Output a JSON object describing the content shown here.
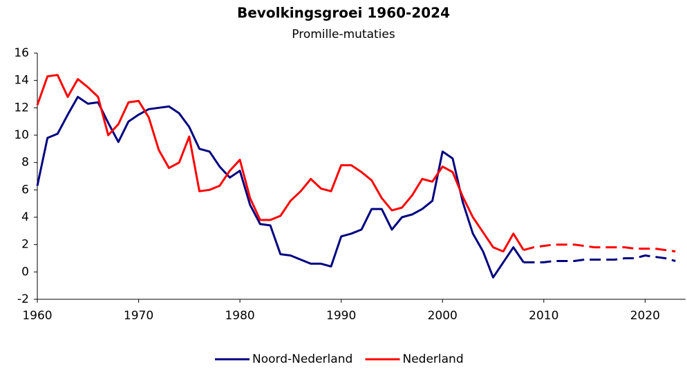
{
  "chart_data": {
    "type": "line",
    "title": "Bevolkingsgroei 1960-2024",
    "subtitle": "Promille-mutaties",
    "x": [
      1960,
      1961,
      1962,
      1963,
      1964,
      1965,
      1966,
      1967,
      1968,
      1969,
      1970,
      1971,
      1972,
      1973,
      1974,
      1975,
      1976,
      1977,
      1978,
      1979,
      1980,
      1981,
      1982,
      1983,
      1984,
      1985,
      1986,
      1987,
      1988,
      1989,
      1990,
      1991,
      1992,
      1993,
      1994,
      1995,
      1996,
      1997,
      1998,
      1999,
      2000,
      2001,
      2002,
      2003,
      2004,
      2005,
      2006,
      2007,
      2008,
      2009,
      2010,
      2011,
      2012,
      2013,
      2014,
      2015,
      2016,
      2017,
      2018,
      2019,
      2020,
      2021,
      2022,
      2023
    ],
    "series": [
      {
        "name": "Noord-Nederland",
        "color": "#000080",
        "values": [
          6.3,
          9.8,
          10.1,
          11.5,
          12.8,
          12.3,
          12.4,
          10.9,
          9.5,
          11.0,
          11.5,
          11.9,
          12.0,
          12.1,
          11.6,
          10.6,
          9.0,
          8.8,
          7.7,
          6.9,
          7.4,
          4.9,
          3.5,
          3.4,
          1.3,
          1.2,
          0.9,
          0.6,
          0.6,
          0.4,
          2.6,
          2.8,
          3.1,
          4.6,
          4.6,
          3.1,
          4.0,
          4.2,
          4.6,
          5.2,
          8.8,
          8.3,
          5.1,
          2.8,
          1.5,
          -0.4,
          0.7,
          1.8,
          0.7,
          0.7,
          0.7,
          0.8,
          0.8,
          0.8,
          0.9,
          0.9,
          0.9,
          0.9,
          1.0,
          1.0,
          1.2,
          1.1,
          1.0,
          0.8
        ]
      },
      {
        "name": "Nederland",
        "color": "#ff0000",
        "values": [
          12.2,
          14.3,
          14.4,
          12.8,
          14.1,
          13.5,
          12.8,
          10.0,
          10.8,
          12.4,
          12.5,
          11.3,
          8.9,
          7.6,
          8.0,
          9.9,
          5.9,
          6.0,
          6.3,
          7.4,
          8.2,
          5.4,
          3.8,
          3.8,
          4.1,
          5.2,
          5.9,
          6.8,
          6.1,
          5.9,
          7.8,
          7.8,
          7.3,
          6.7,
          5.4,
          4.5,
          4.7,
          5.6,
          6.8,
          6.6,
          7.7,
          7.3,
          5.5,
          4.0,
          2.9,
          1.8,
          1.5,
          2.8,
          1.6,
          1.8,
          1.9,
          2.0,
          2.0,
          2.0,
          1.9,
          1.8,
          1.8,
          1.8,
          1.8,
          1.7,
          1.7,
          1.7,
          1.6,
          1.5
        ]
      }
    ],
    "dashed_from": 2008,
    "xlim": [
      1960,
      2024
    ],
    "xticks": [
      1960,
      1970,
      1980,
      1990,
      2000,
      2010,
      2020
    ],
    "ylim": [
      -2,
      16
    ],
    "yticks": [
      -2,
      0,
      2,
      4,
      6,
      8,
      10,
      12,
      14,
      16
    ],
    "grid": false,
    "legend": "bottom"
  }
}
